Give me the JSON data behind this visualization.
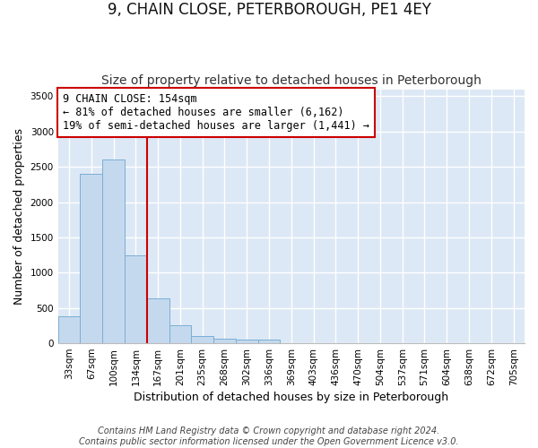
{
  "title": "9, CHAIN CLOSE, PETERBOROUGH, PE1 4EY",
  "subtitle": "Size of property relative to detached houses in Peterborough",
  "xlabel": "Distribution of detached houses by size in Peterborough",
  "ylabel": "Number of detached properties",
  "categories": [
    "33sqm",
    "67sqm",
    "100sqm",
    "134sqm",
    "167sqm",
    "201sqm",
    "235sqm",
    "268sqm",
    "302sqm",
    "336sqm",
    "369sqm",
    "403sqm",
    "436sqm",
    "470sqm",
    "504sqm",
    "537sqm",
    "571sqm",
    "604sqm",
    "638sqm",
    "672sqm",
    "705sqm"
  ],
  "values": [
    380,
    2400,
    2600,
    1250,
    630,
    250,
    100,
    65,
    55,
    50,
    0,
    0,
    0,
    0,
    0,
    0,
    0,
    0,
    0,
    0,
    0
  ],
  "bar_color": "#c5d9ee",
  "bar_edge_color": "#7aaed4",
  "vline_x_index": 3.5,
  "vline_color": "#cc0000",
  "annotation_text": "9 CHAIN CLOSE: 154sqm\n← 81% of detached houses are smaller (6,162)\n19% of semi-detached houses are larger (1,441) →",
  "annotation_box_color": "#ffffff",
  "annotation_box_edge_color": "#cc0000",
  "ylim": [
    0,
    3600
  ],
  "yticks": [
    0,
    500,
    1000,
    1500,
    2000,
    2500,
    3000,
    3500
  ],
  "footer_line1": "Contains HM Land Registry data © Crown copyright and database right 2024.",
  "footer_line2": "Contains public sector information licensed under the Open Government Licence v3.0.",
  "bg_color": "#ffffff",
  "plot_bg_color": "#dce8f5",
  "grid_color": "#ffffff",
  "title_fontsize": 12,
  "subtitle_fontsize": 10,
  "axis_label_fontsize": 9,
  "tick_fontsize": 7.5,
  "annotation_fontsize": 8.5,
  "footer_fontsize": 7
}
